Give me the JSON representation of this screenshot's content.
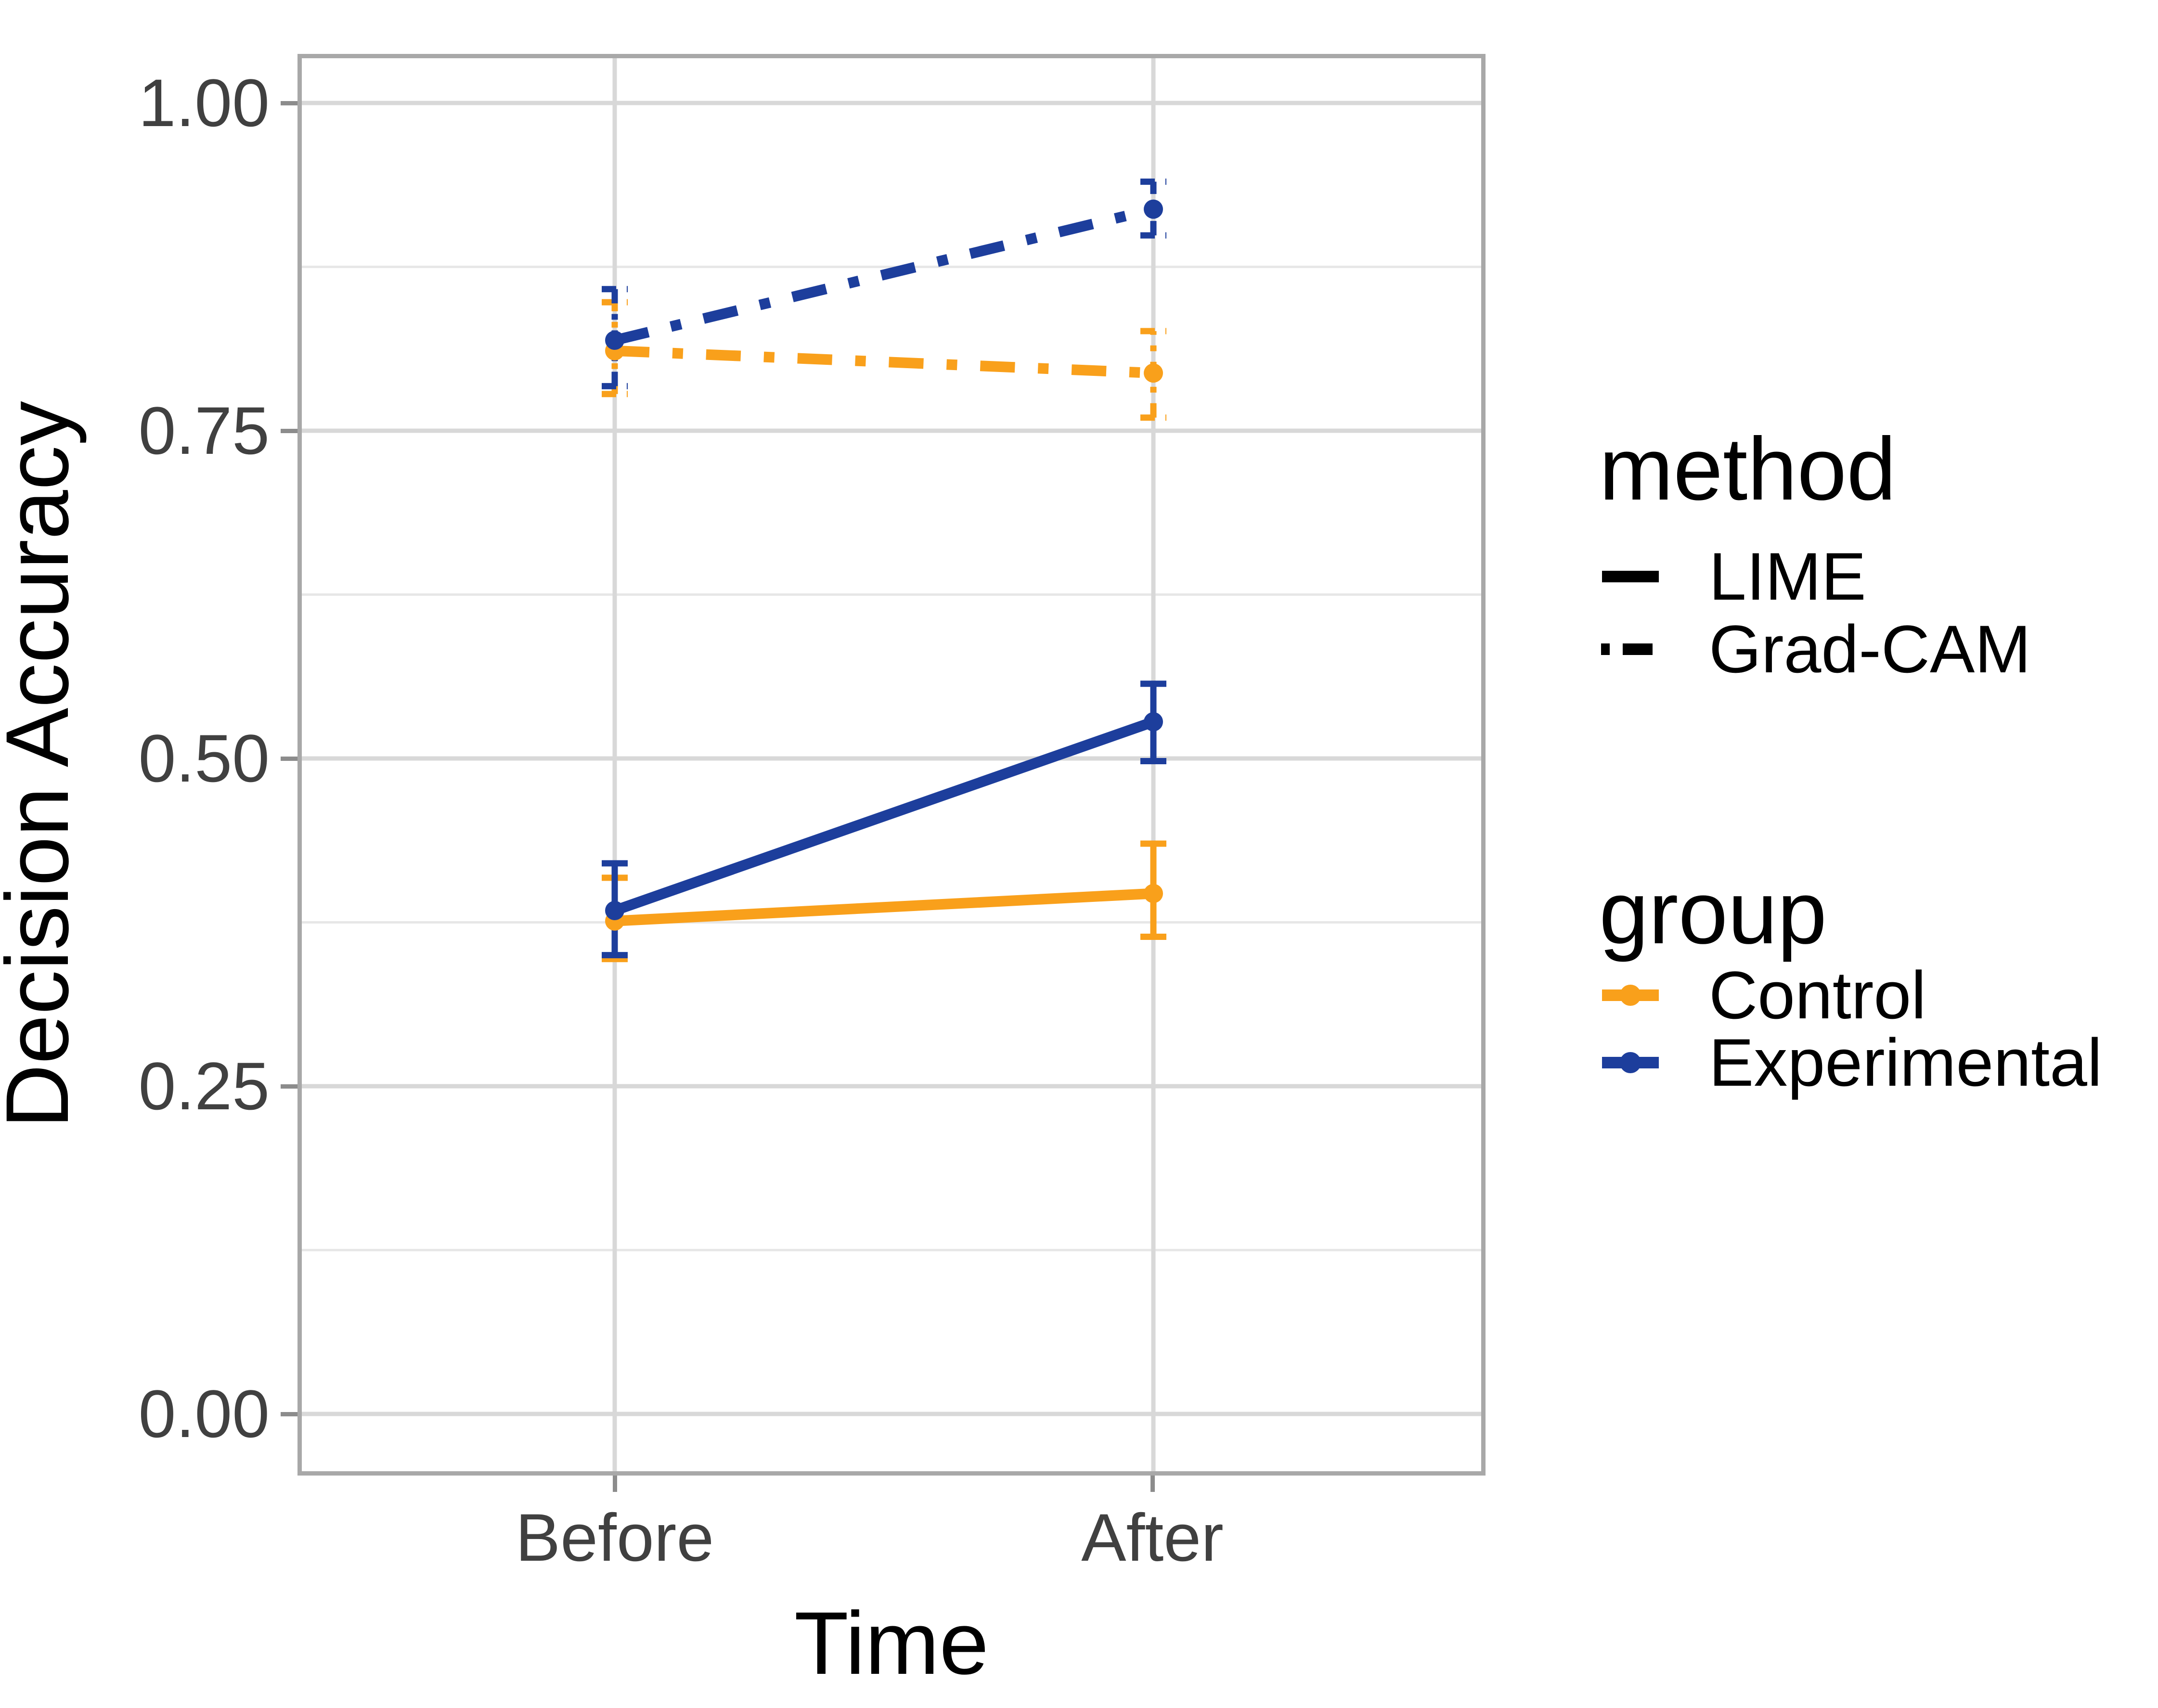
{
  "figure": {
    "background": "#ffffff"
  },
  "colors": {
    "control": "#f9a01b",
    "experimental": "#1d3e9c",
    "legend_key": "#000000",
    "grid_major": "#d8d8d8",
    "grid_minor": "#e7e7e7",
    "panel_border": "#a8a8a8",
    "tick_mark": "#8c8c8c",
    "tick_label": "#404040"
  },
  "chart_data": {
    "type": "line",
    "title": "",
    "xlabel": "Time",
    "ylabel": "Decision Accuracy",
    "categories": [
      "Before",
      "After"
    ],
    "y_tick_labels_top_to_bottom": [
      "1.00",
      "0.75",
      "0.50",
      "0.25",
      "0.00"
    ],
    "y_tick_values": [
      0,
      0.25,
      0.5,
      0.75,
      1.0
    ],
    "ylim": [
      -0.04,
      1.03
    ],
    "grid": "major+minor horizontal, major vertical at categories",
    "legend_position": "right",
    "point_estimate": "mean with error bars (approx. 95% CI)",
    "series": [
      {
        "name": "Grad-CAM Control",
        "group": "Control",
        "method": "Grad-CAM",
        "color": "#f9a01b",
        "linetype": "dotdash",
        "values": [
          0.811,
          0.794
        ],
        "ci_low": [
          0.778,
          0.76
        ],
        "ci_high": [
          0.848,
          0.826
        ]
      },
      {
        "name": "Grad-CAM Experimental",
        "group": "Experimental",
        "method": "Grad-CAM",
        "color": "#1d3e9c",
        "linetype": "dotdash",
        "values": [
          0.819,
          0.919
        ],
        "ci_low": [
          0.784,
          0.899
        ],
        "ci_high": [
          0.858,
          0.94
        ]
      },
      {
        "name": "LIME Control",
        "group": "Control",
        "method": "LIME",
        "color": "#f9a01b",
        "linetype": "solid",
        "values": [
          0.376,
          0.397
        ],
        "ci_low": [
          0.347,
          0.364
        ],
        "ci_high": [
          0.409,
          0.435
        ]
      },
      {
        "name": "LIME Experimental",
        "group": "Experimental",
        "method": "LIME",
        "color": "#1d3e9c",
        "linetype": "solid",
        "values": [
          0.384,
          0.528
        ],
        "ci_low": [
          0.35,
          0.498
        ],
        "ci_high": [
          0.42,
          0.557
        ]
      }
    ]
  },
  "legend": {
    "method": {
      "title": "method",
      "items": [
        {
          "label": "LIME",
          "linetype": "solid",
          "color": "#000000"
        },
        {
          "label": "Grad-CAM",
          "linetype": "dotdash",
          "color": "#000000"
        }
      ]
    },
    "group": {
      "title": "group",
      "items": [
        {
          "label": "Control",
          "color": "#f9a01b"
        },
        {
          "label": "Experimental",
          "color": "#1d3e9c"
        }
      ]
    }
  }
}
